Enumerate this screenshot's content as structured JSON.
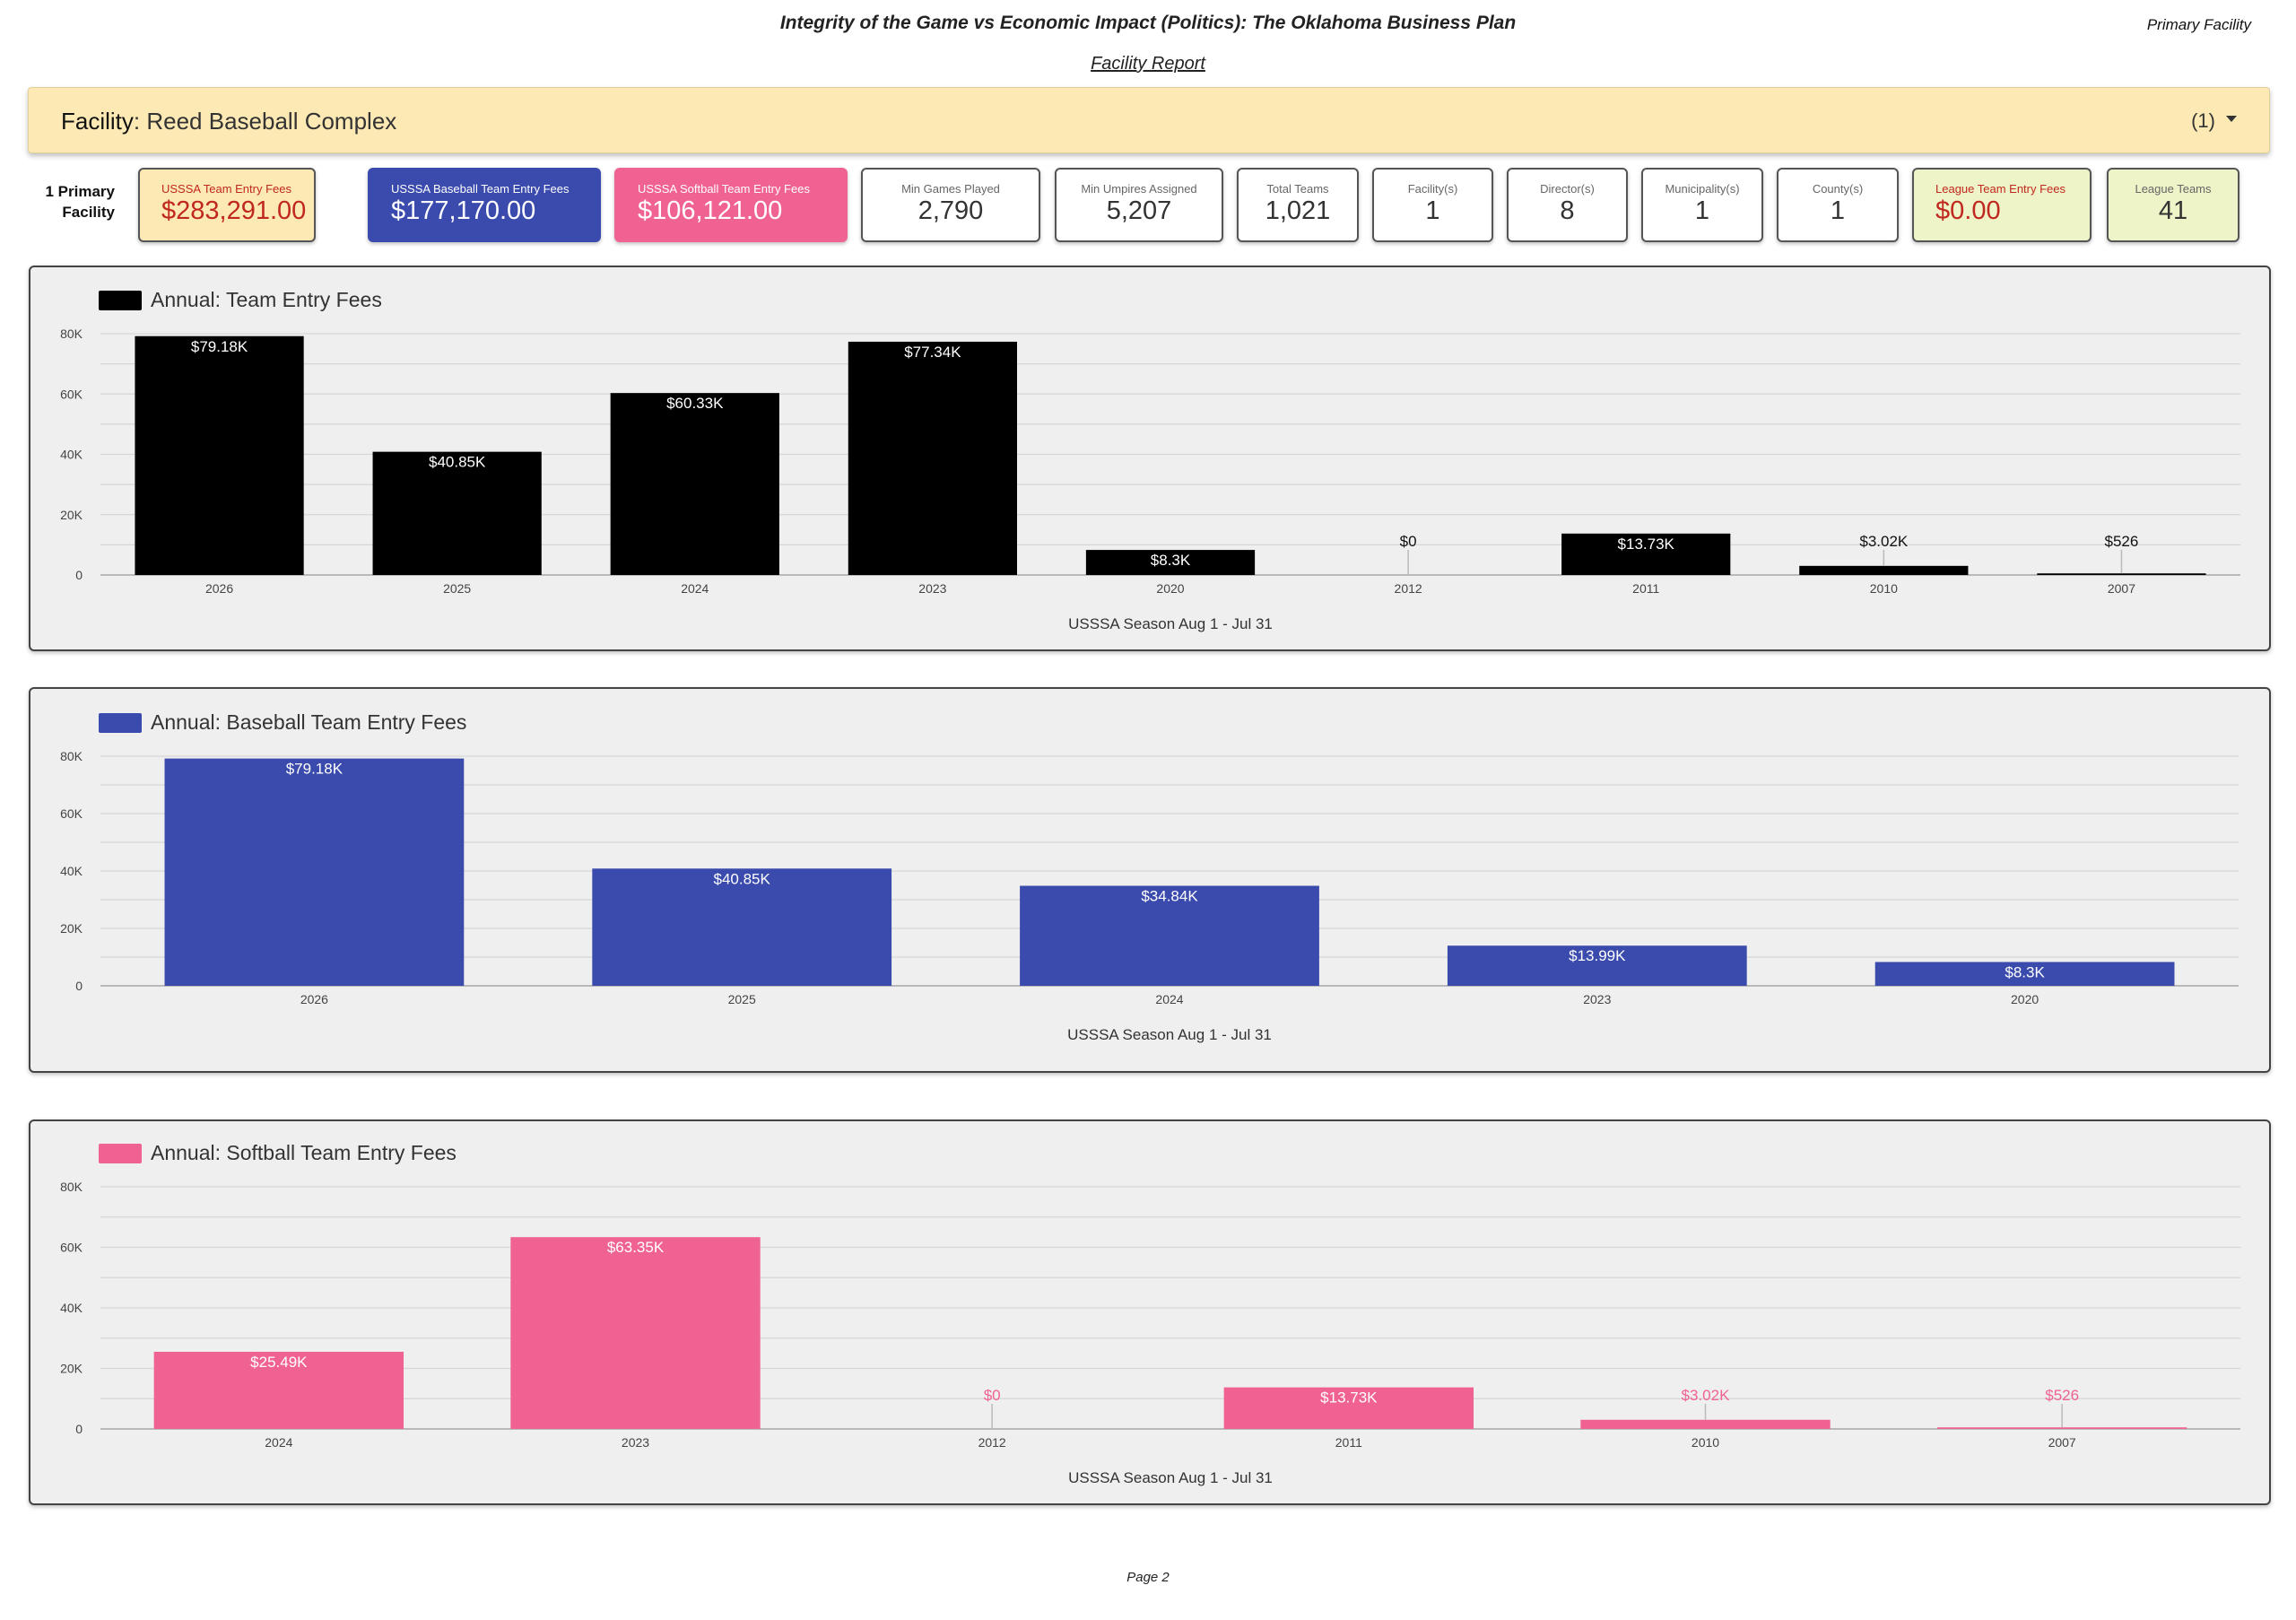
{
  "header": {
    "title": "Integrity of the Game vs Economic Impact (Politics): The Oklahoma Business Plan",
    "corner": "Primary Facility",
    "subtitle": "Facility Report"
  },
  "filter": {
    "label": "Facility",
    "value": ": Reed Baseball Complex",
    "count": "(1)"
  },
  "kpi_label": "1 Primary Facility",
  "kpis": [
    {
      "label": "USSSA Team Entry Fees",
      "value": "$283,291.00"
    },
    {
      "label": "USSSA Baseball Team Entry Fees",
      "value": "$177,170.00"
    },
    {
      "label": "USSSA Softball Team Entry Fees",
      "value": "$106,121.00"
    },
    {
      "label": "Min Games Played",
      "value": "2,790"
    },
    {
      "label": "Min Umpires Assigned",
      "value": "5,207"
    },
    {
      "label": "Total Teams",
      "value": "1,021"
    },
    {
      "label": "Facility(s)",
      "value": "1"
    },
    {
      "label": "Director(s)",
      "value": "8"
    },
    {
      "label": "Municipality(s)",
      "value": "1"
    },
    {
      "label": "County(s)",
      "value": "1"
    },
    {
      "label": "League Team Entry Fees",
      "value": "$0.00"
    },
    {
      "label": "League Teams",
      "value": "41"
    }
  ],
  "colors": {
    "all": "#000000",
    "baseball": "#3b4bad",
    "softball": "#f06292",
    "filter_bg": "#fde9b3",
    "kpi_yellow": "#fde9b3",
    "kpi_green": "#eef3c8",
    "red_text": "#c0281e"
  },
  "chart_data": [
    {
      "type": "bar",
      "title": "Annual: Team Entry Fees",
      "xlabel": "USSSA Season Aug 1 - Jul 31",
      "categories": [
        "2026",
        "2025",
        "2024",
        "2023",
        "2020",
        "2012",
        "2011",
        "2010",
        "2007"
      ],
      "values": [
        79180,
        40850,
        60330,
        77340,
        8300,
        0,
        13730,
        3020,
        526
      ],
      "data_labels": [
        "$79.18K",
        "$40.85K",
        "$60.33K",
        "$77.34K",
        "$8.3K",
        "$0",
        "$13.73K",
        "$3.02K",
        "$526"
      ],
      "y_ticks": [
        "0",
        "20K",
        "40K",
        "60K",
        "80K"
      ],
      "ylim": [
        0,
        80000
      ],
      "color": "#000000",
      "grid": true,
      "legend": "top-left"
    },
    {
      "type": "bar",
      "title": "Annual: Baseball Team Entry Fees",
      "xlabel": "USSSA Season Aug 1 - Jul 31",
      "categories": [
        "2026",
        "2025",
        "2024",
        "2023",
        "2020"
      ],
      "values": [
        79180,
        40850,
        34840,
        13990,
        8300
      ],
      "data_labels": [
        "$79.18K",
        "$40.85K",
        "$34.84K",
        "$13.99K",
        "$8.3K"
      ],
      "y_ticks": [
        "0",
        "20K",
        "40K",
        "60K",
        "80K"
      ],
      "ylim": [
        0,
        80000
      ],
      "color": "#3b4bad",
      "grid": true,
      "legend": "top-left"
    },
    {
      "type": "bar",
      "title": "Annual: Softball Team Entry Fees",
      "xlabel": "USSSA Season Aug 1 - Jul 31",
      "categories": [
        "2024",
        "2023",
        "2012",
        "2011",
        "2010",
        "2007"
      ],
      "values": [
        25490,
        63350,
        0,
        13730,
        3020,
        526
      ],
      "data_labels": [
        "$25.49K",
        "$63.35K",
        "$0",
        "$13.73K",
        "$3.02K",
        "$526"
      ],
      "y_ticks": [
        "0",
        "20K",
        "40K",
        "60K",
        "80K"
      ],
      "ylim": [
        0,
        80000
      ],
      "color": "#f06292",
      "grid": true,
      "legend": "top-left"
    }
  ],
  "footer": {
    "page": "Page 2"
  }
}
